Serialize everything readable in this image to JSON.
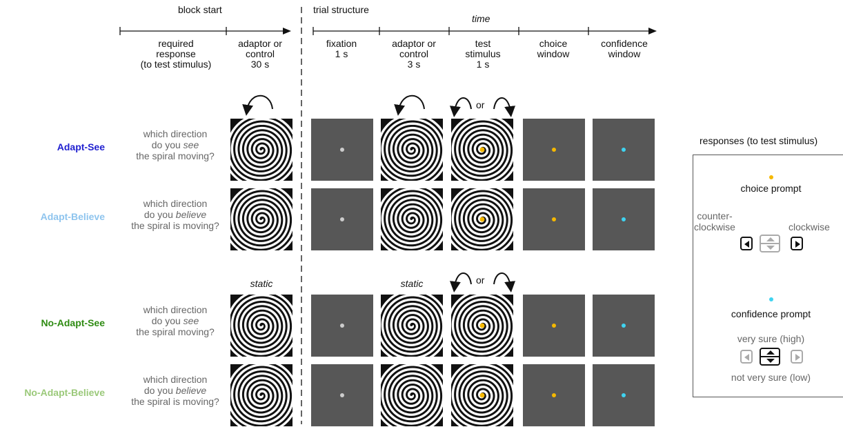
{
  "headers": {
    "block_start": "block start",
    "trial_structure": "trial structure",
    "time": "time"
  },
  "block_columns": {
    "required_response": [
      "required",
      "response",
      "(to test stimulus)"
    ],
    "adaptor_control": [
      "adaptor or",
      "control",
      "30 s"
    ]
  },
  "trial_columns": [
    {
      "lines": [
        "fixation",
        "1 s"
      ]
    },
    {
      "lines": [
        "adaptor or",
        "control",
        "3 s"
      ]
    },
    {
      "lines": [
        "test",
        "stimulus",
        "1 s"
      ]
    },
    {
      "lines": [
        "choice",
        "window"
      ]
    },
    {
      "lines": [
        "confidence",
        "window"
      ]
    }
  ],
  "or_text": "or",
  "static_text": "static",
  "conditions": [
    {
      "name": "Adapt-See",
      "color": "#1f1fd0",
      "question": [
        "which direction",
        "do you ",
        "see",
        "the spiral moving?"
      ]
    },
    {
      "name": "Adapt-Believe",
      "color": "#8ec4ee",
      "question": [
        "which direction",
        "do you ",
        "believe",
        "the spiral is moving?"
      ]
    },
    {
      "name": "No-Adapt-See",
      "color": "#2e8b12",
      "question": [
        "which direction",
        "do you ",
        "see",
        "the spiral moving?"
      ]
    },
    {
      "name": "No-Adapt-Believe",
      "color": "#9bc97a",
      "question": [
        "which direction",
        "do you ",
        "believe",
        "the spiral is moving?"
      ]
    }
  ],
  "colors": {
    "panel": "#575757",
    "fixation_dot": "#cccccc",
    "choice_dot": "#f5b800",
    "confidence_dot": "#3fd3f0"
  },
  "responses": {
    "title": "responses (to test stimulus)",
    "choice_prompt": "choice prompt",
    "counter_clockwise": [
      "counter-",
      "clockwise"
    ],
    "clockwise": "clockwise",
    "confidence_prompt": "confidence prompt",
    "very_sure": "very sure (high)",
    "not_very_sure": "not very sure (low)"
  }
}
